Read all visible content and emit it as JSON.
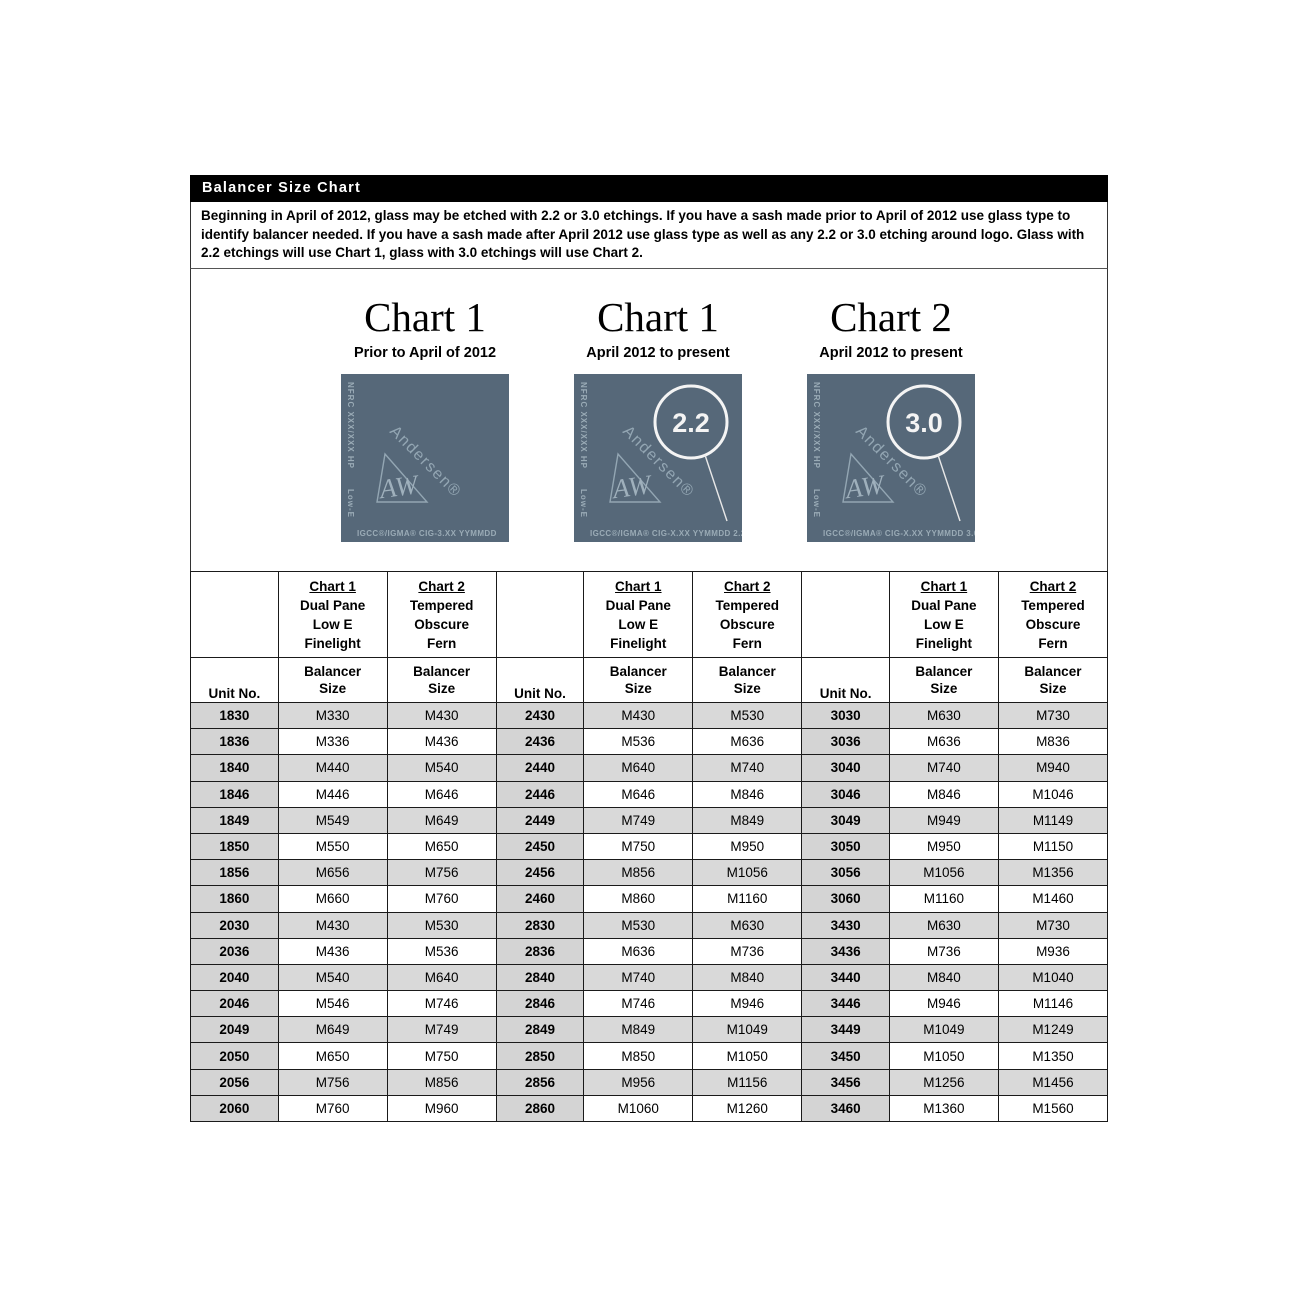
{
  "header": {
    "title": "Balancer Size Chart"
  },
  "intro": "Beginning in April of 2012, glass may be etched with 2.2 or 3.0 etchings.  If you have a sash made prior to April of 2012 use glass type to identify balancer needed.  If you have a sash made after April 2012 use glass type as well as any 2.2 or 3.0 etching around logo. Glass with 2.2 etchings will use Chart 1, glass with 3.0 etchings will use Chart 2.",
  "glass_common": {
    "nfrc": "NFRC XXX/XXX HP",
    "lowe": "Low-E",
    "brand": "Andersen®",
    "monogram": "AW"
  },
  "charts": [
    {
      "title": "Chart 1",
      "subtitle": "Prior to April of 2012",
      "igcc": "IGCC®/IGMA® CIG-3.XX YYMMDD",
      "badge": ""
    },
    {
      "title": "Chart 1",
      "subtitle": "April 2012 to present",
      "igcc": "IGCC®/IGMA® CIG-X.XX YYMMDD 2.2",
      "badge": "2.2"
    },
    {
      "title": "Chart 2",
      "subtitle": "April 2012 to present",
      "igcc": "IGCC®/IGMA® CIG-X.XX YYMMDD 3.0",
      "badge": "3.0"
    }
  ],
  "table": {
    "chart1_header": {
      "title": "Chart 1",
      "lines": [
        "Dual Pane",
        "Low E",
        "Finelight"
      ]
    },
    "chart2_header": {
      "title": "Chart 2",
      "lines": [
        "Tempered",
        "Obscure",
        "Fern"
      ]
    },
    "unit_header": "Unit No.",
    "balancer_header": {
      "line1": "Balancer",
      "line2": "Size"
    },
    "rows": [
      [
        "1830",
        "M330",
        "M430",
        "2430",
        "M430",
        "M530",
        "3030",
        "M630",
        "M730"
      ],
      [
        "1836",
        "M336",
        "M436",
        "2436",
        "M536",
        "M636",
        "3036",
        "M636",
        "M836"
      ],
      [
        "1840",
        "M440",
        "M540",
        "2440",
        "M640",
        "M740",
        "3040",
        "M740",
        "M940"
      ],
      [
        "1846",
        "M446",
        "M646",
        "2446",
        "M646",
        "M846",
        "3046",
        "M846",
        "M1046"
      ],
      [
        "1849",
        "M549",
        "M649",
        "2449",
        "M749",
        "M849",
        "3049",
        "M949",
        "M1149"
      ],
      [
        "1850",
        "M550",
        "M650",
        "2450",
        "M750",
        "M950",
        "3050",
        "M950",
        "M1150"
      ],
      [
        "1856",
        "M656",
        "M756",
        "2456",
        "M856",
        "M1056",
        "3056",
        "M1056",
        "M1356"
      ],
      [
        "1860",
        "M660",
        "M760",
        "2460",
        "M860",
        "M1160",
        "3060",
        "M1160",
        "M1460"
      ],
      [
        "2030",
        "M430",
        "M530",
        "2830",
        "M530",
        "M630",
        "3430",
        "M630",
        "M730"
      ],
      [
        "2036",
        "M436",
        "M536",
        "2836",
        "M636",
        "M736",
        "3436",
        "M736",
        "M936"
      ],
      [
        "2040",
        "M540",
        "M640",
        "2840",
        "M740",
        "M840",
        "3440",
        "M840",
        "M1040"
      ],
      [
        "2046",
        "M546",
        "M746",
        "2846",
        "M746",
        "M946",
        "3446",
        "M946",
        "M1146"
      ],
      [
        "2049",
        "M649",
        "M749",
        "2849",
        "M849",
        "M1049",
        "3449",
        "M1049",
        "M1249"
      ],
      [
        "2050",
        "M650",
        "M750",
        "2850",
        "M850",
        "M1050",
        "3450",
        "M1050",
        "M1350"
      ],
      [
        "2056",
        "M756",
        "M856",
        "2856",
        "M956",
        "M1156",
        "3456",
        "M1256",
        "M1456"
      ],
      [
        "2060",
        "M760",
        "M960",
        "2860",
        "M1060",
        "M1260",
        "3460",
        "M1360",
        "M1560"
      ]
    ]
  },
  "colors": {
    "title_bar_bg": "#000000",
    "title_bar_text": "#ffffff",
    "glass_bg": "#566879",
    "glass_text": "#9aabb6",
    "unit_cell_shade": "#d4d4d4",
    "value_row_shade": "#d9d9d9"
  }
}
